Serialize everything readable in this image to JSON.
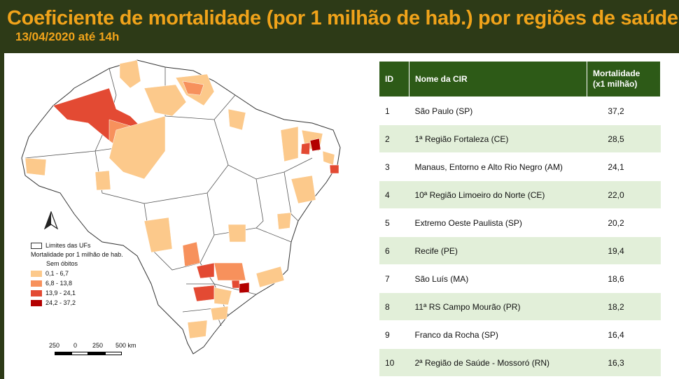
{
  "header": {
    "title": "Coeficiente de mortalidade (por 1 milhão de hab.) por regiões de saúde -",
    "subtitle": "13/04/2020 até 14h"
  },
  "legend": {
    "uf_label": "Limites das UFs",
    "title": "Mortalidade por 1 milhão de hab.",
    "no_deaths": "Sem óbitos",
    "classes": [
      {
        "label": "0,1 - 6,7",
        "color": "#fcc98b"
      },
      {
        "label": "6,8 - 13,8",
        "color": "#f7915c"
      },
      {
        "label": "13,9 - 24,1",
        "color": "#e34a33"
      },
      {
        "label": "24,2 - 37,2",
        "color": "#b30000"
      }
    ]
  },
  "scale": {
    "labels": [
      "250",
      "0",
      "250",
      "500 km"
    ]
  },
  "table": {
    "headers": {
      "id": "ID",
      "name": "Nome da CIR",
      "value_line1": "Mortalidade",
      "value_line2": "(x1 milhão)"
    },
    "rows": [
      {
        "id": "1",
        "name": "São Paulo (SP)",
        "value": "37,2"
      },
      {
        "id": "2",
        "name": "1ª Região Fortaleza (CE)",
        "value": "28,5"
      },
      {
        "id": "3",
        "name": "Manaus, Entorno e Alto Rio Negro (AM)",
        "value": "24,1"
      },
      {
        "id": "4",
        "name": "10ª Região Limoeiro do Norte (CE)",
        "value": "22,0"
      },
      {
        "id": "5",
        "name": "Extremo Oeste Paulista (SP)",
        "value": "20,2"
      },
      {
        "id": "6",
        "name": "Recife (PE)",
        "value": "19,4"
      },
      {
        "id": "7",
        "name": "São Luís (MA)",
        "value": "18,6"
      },
      {
        "id": "8",
        "name": "11ª RS Campo Mourão (PR)",
        "value": "18,2"
      },
      {
        "id": "9",
        "name": "Franco da Rocha (SP)",
        "value": "16,4"
      },
      {
        "id": "10",
        "name": "2ª Região de Saúde - Mossoró (RN)",
        "value": "16,3"
      }
    ]
  }
}
